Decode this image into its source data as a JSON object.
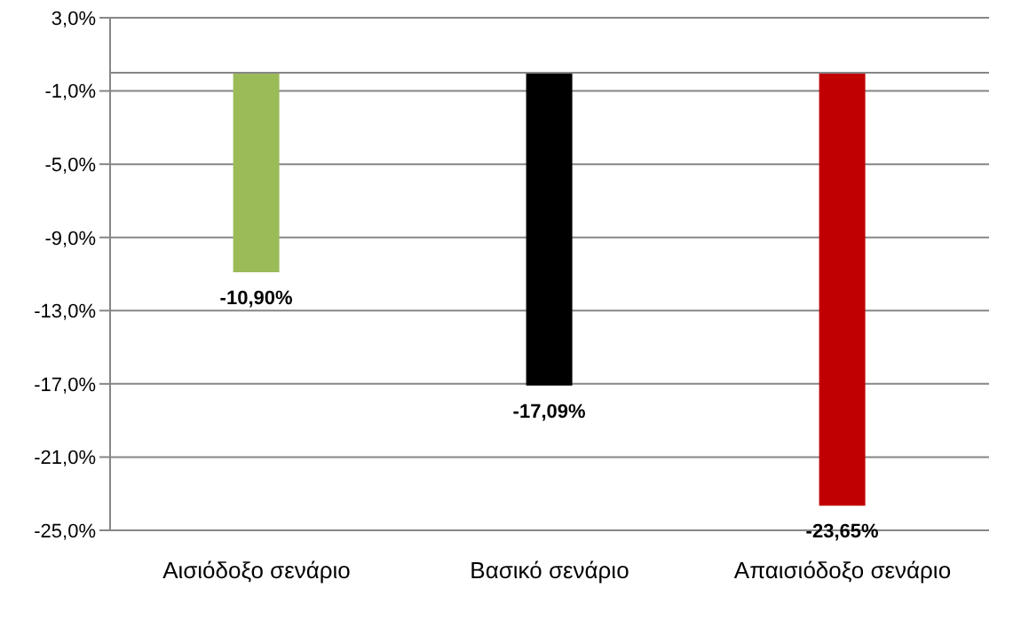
{
  "chart_data": {
    "type": "bar",
    "categories": [
      "Αισιόδοξο σενάριο",
      "Βασικό σενάριο",
      "Απαισιόδοξο σενάριο"
    ],
    "values": [
      -10.9,
      -17.09,
      -23.65
    ],
    "colors": [
      "#9bbb59",
      "#000000",
      "#c00000"
    ],
    "value_labels": [
      "-10,90%",
      "-17,09%",
      "-23,65%"
    ],
    "ylim": [
      -25,
      3
    ],
    "yticks": [
      {
        "value": 3,
        "label": "3,0%"
      },
      {
        "value": -1,
        "label": "-1,0%"
      },
      {
        "value": -5,
        "label": "-5,0%"
      },
      {
        "value": -9,
        "label": "-9,0%"
      },
      {
        "value": -13,
        "label": "-13,0%"
      },
      {
        "value": -17,
        "label": "-17,0%"
      },
      {
        "value": -21,
        "label": "-21,0%"
      },
      {
        "value": -25,
        "label": "-25,0%"
      }
    ],
    "ref_lines": [
      {
        "axis": "y",
        "value": 0,
        "color": "#868686"
      }
    ],
    "grid": "y"
  }
}
